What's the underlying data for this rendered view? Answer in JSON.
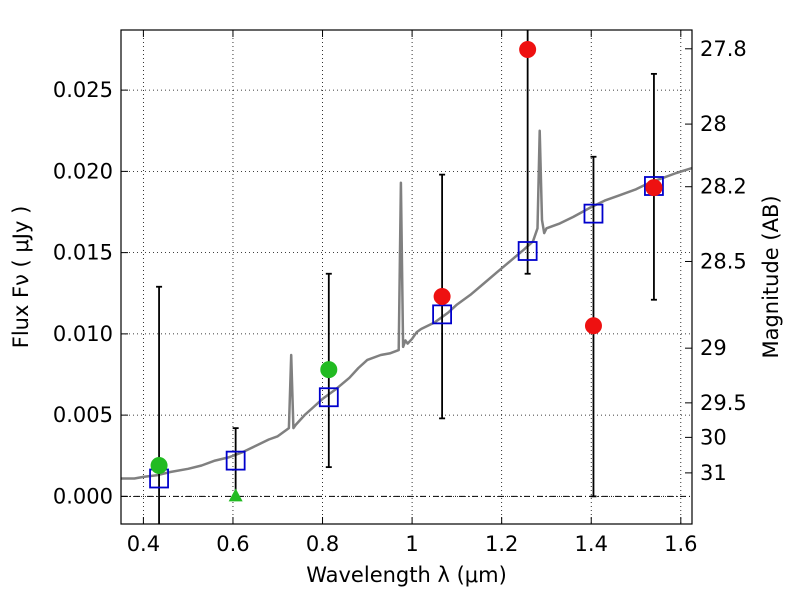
{
  "chart_data": {
    "type": "scatter",
    "xlabel": "Wavelength  λ (μm)",
    "ylabel": "Flux  Fν  ( μJy )",
    "ylabel_right": "Magnitude (AB)",
    "xlim": [
      0.35,
      1.625
    ],
    "ylim": [
      -0.0017,
      0.0287
    ],
    "grid": true,
    "x_ticks": [
      0.4,
      0.6,
      0.8,
      1.0,
      1.2,
      1.4,
      1.6
    ],
    "x_tick_labels": [
      "0.4",
      "0.6",
      "0.8",
      "1",
      "1.2",
      "1.4",
      "1.6"
    ],
    "y_ticks": [
      0.0,
      0.005,
      0.01,
      0.015,
      0.02,
      0.025
    ],
    "y_tick_labels": [
      "0.000",
      "0.005",
      "0.010",
      "0.015",
      "0.020",
      "0.025"
    ],
    "mag_ticks": [
      27.8,
      28.0,
      28.2,
      28.5,
      29.0,
      29.5,
      30.0,
      31.0
    ],
    "mag_tick_labels": [
      "27.8",
      "28",
      "28.2",
      "28.5",
      "29",
      "29.5",
      "30",
      "31"
    ],
    "colors": {
      "model": "#808080",
      "model_photometry": "#0000cc",
      "optical_detection": "#22bb22",
      "nir_detection": "#ee1111",
      "errorbar": "#000000"
    },
    "series": [
      {
        "kind": "model_spectrum",
        "x": [
          0.35,
          0.38,
          0.4,
          0.43,
          0.46,
          0.5,
          0.53,
          0.56,
          0.59,
          0.62,
          0.65,
          0.68,
          0.7,
          0.725,
          0.73,
          0.735,
          0.74,
          0.76,
          0.78,
          0.8,
          0.83,
          0.86,
          0.88,
          0.9,
          0.93,
          0.95,
          0.97,
          0.975,
          0.98,
          0.985,
          0.99,
          1.0,
          1.01,
          1.02,
          1.05,
          1.08,
          1.1,
          1.13,
          1.16,
          1.19,
          1.22,
          1.25,
          1.27,
          1.28,
          1.285,
          1.29,
          1.295,
          1.3,
          1.33,
          1.36,
          1.4,
          1.43,
          1.46,
          1.5,
          1.53,
          1.56,
          1.59,
          1.625
        ],
        "y": [
          0.0011,
          0.0011,
          0.0012,
          0.0013,
          0.0015,
          0.0017,
          0.0019,
          0.0022,
          0.0024,
          0.0027,
          0.0031,
          0.0035,
          0.0037,
          0.0042,
          0.0087,
          0.0042,
          0.0044,
          0.005,
          0.0055,
          0.006,
          0.0066,
          0.0073,
          0.0079,
          0.0084,
          0.0087,
          0.0088,
          0.009,
          0.0193,
          0.0092,
          0.0096,
          0.0094,
          0.0097,
          0.0101,
          0.0103,
          0.0107,
          0.0113,
          0.0118,
          0.0124,
          0.0131,
          0.0138,
          0.0145,
          0.0152,
          0.0157,
          0.0165,
          0.0225,
          0.017,
          0.0162,
          0.0165,
          0.0168,
          0.0172,
          0.0178,
          0.0182,
          0.0185,
          0.0189,
          0.0193,
          0.0196,
          0.0199,
          0.0202
        ]
      },
      {
        "kind": "model_photometry",
        "marker": "open-square",
        "x": [
          0.435,
          0.606,
          0.814,
          1.067,
          1.258,
          1.405,
          1.54
        ],
        "y": [
          0.0011,
          0.0022,
          0.0061,
          0.0112,
          0.0151,
          0.0174,
          0.0191
        ]
      },
      {
        "kind": "optical_detection",
        "marker": "circle",
        "x": [
          0.435,
          0.814
        ],
        "y": [
          0.0019,
          0.0078
        ]
      },
      {
        "kind": "optical_upper_limit",
        "marker": "triangle-up",
        "x": [
          0.606
        ],
        "y": [
          0.0
        ]
      },
      {
        "kind": "nir_detection",
        "marker": "circle",
        "x": [
          1.067,
          1.258,
          1.405,
          1.54
        ],
        "y": [
          0.0123,
          0.0275,
          0.0105,
          0.019
        ]
      },
      {
        "kind": "error_bars",
        "x": [
          0.435,
          0.606,
          0.814,
          1.067,
          1.258,
          1.405,
          1.54
        ],
        "low": [
          -0.0017,
          0.0,
          0.0018,
          0.0048,
          0.0137,
          0.0,
          0.0121
        ],
        "high": [
          0.0129,
          0.0042,
          0.0137,
          0.0198,
          0.0287,
          0.0209,
          0.026
        ]
      }
    ]
  }
}
